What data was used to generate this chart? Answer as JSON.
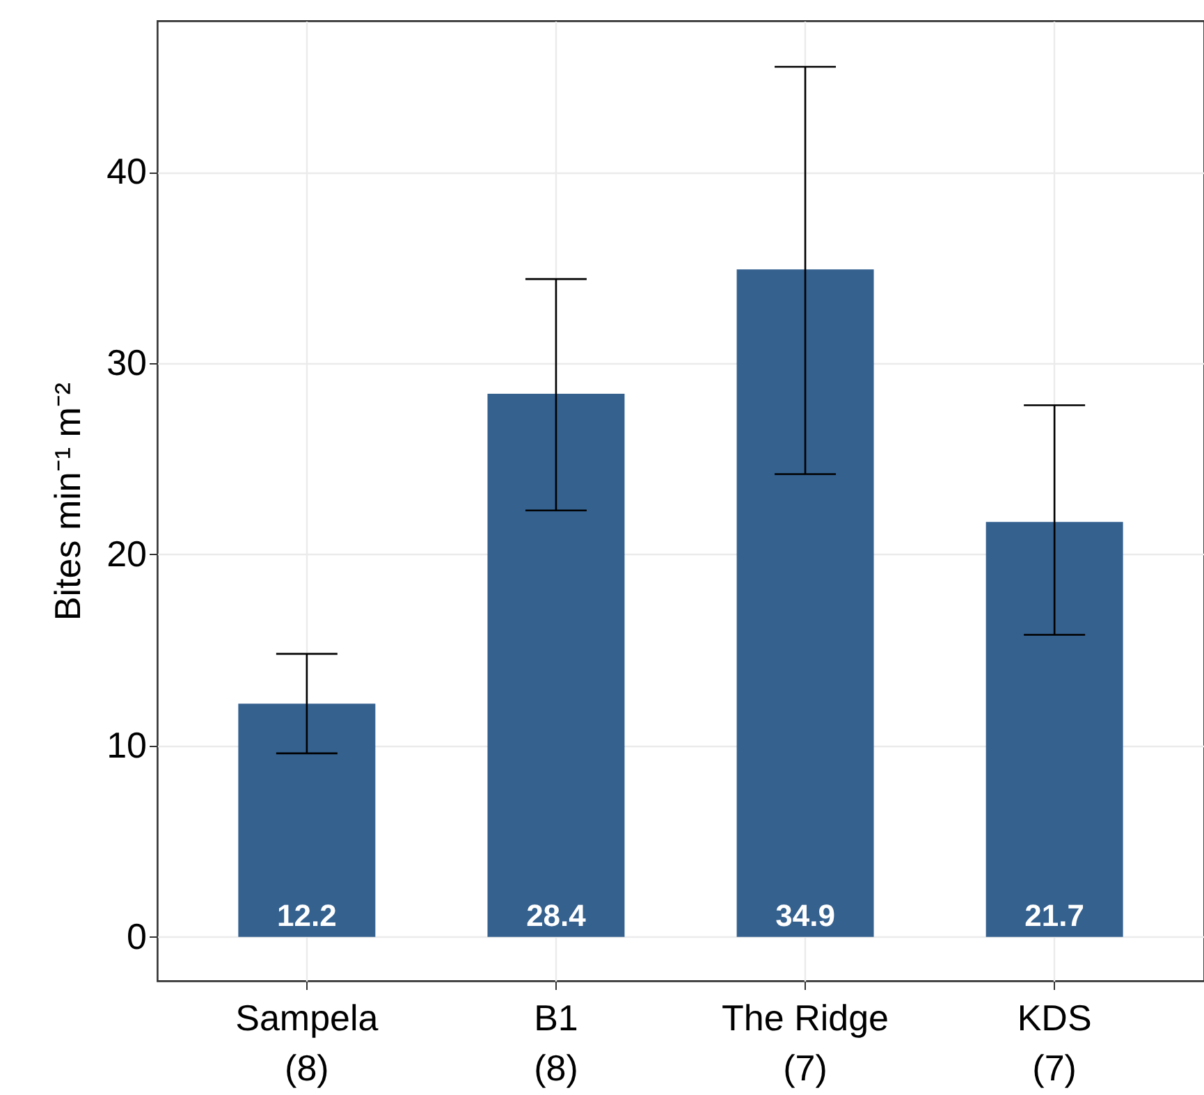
{
  "chart_data": {
    "type": "bar",
    "ylabel": "Bites min⁻¹ m⁻²",
    "categories": [
      "Sampela\n(8)",
      "B1\n(8)",
      "The Ridge\n(7)",
      "KDS\n(7)"
    ],
    "values": [
      12.2,
      28.4,
      34.9,
      21.7
    ],
    "errors": [
      [
        9.6,
        14.8
      ],
      [
        22.3,
        34.4
      ],
      [
        24.2,
        45.5
      ],
      [
        15.8,
        27.8
      ]
    ],
    "color": "#35618f",
    "ylim": [
      -2.3,
      47.9
    ],
    "yticks": [
      0,
      10,
      20,
      30,
      40
    ],
    "grid": true,
    "data_labels": true
  }
}
